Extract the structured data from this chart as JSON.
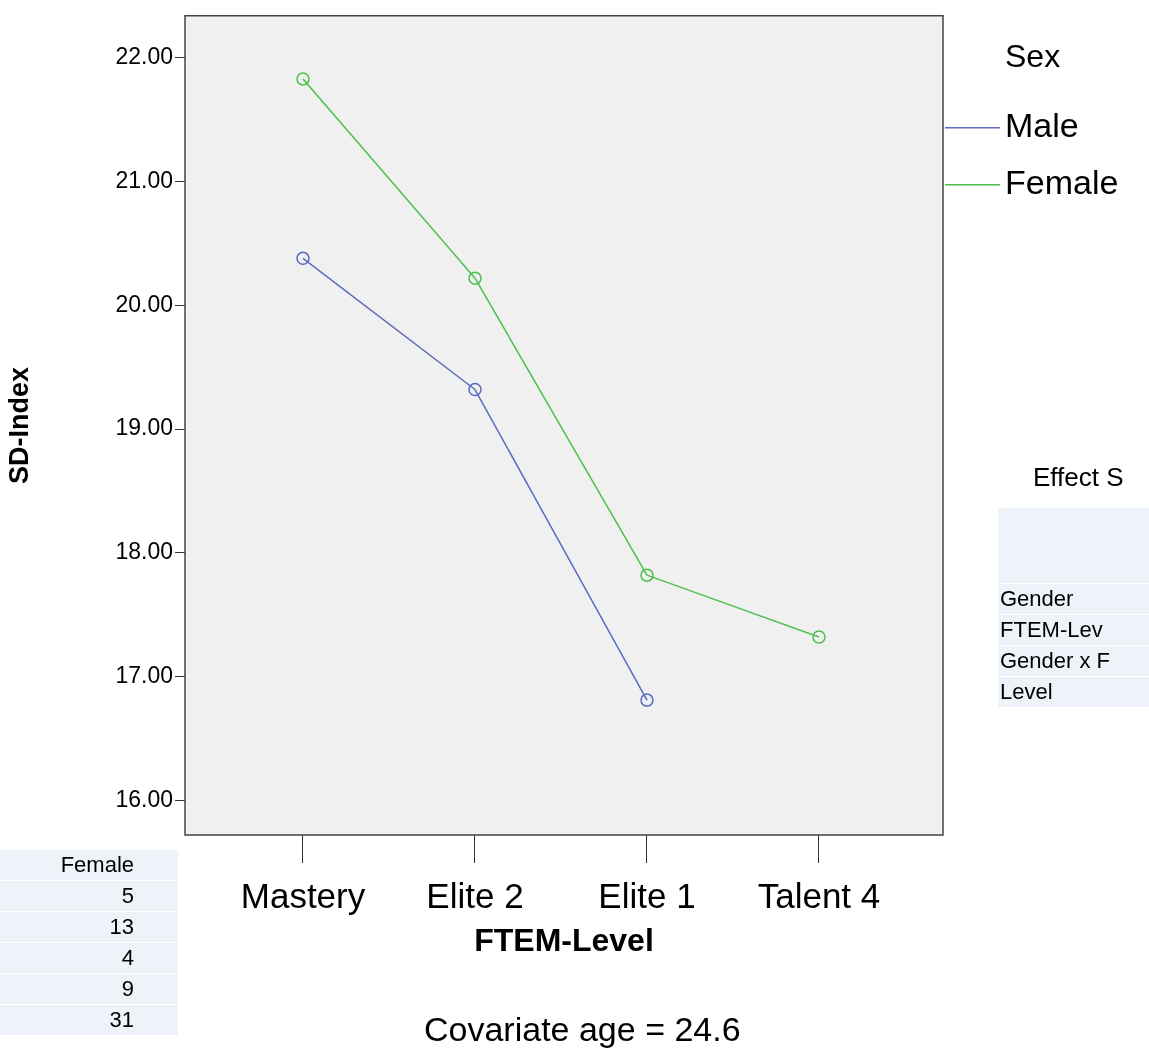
{
  "chart_data": {
    "type": "line",
    "xlabel": "FTEM-Level",
    "ylabel": "SD-Index",
    "legend_title": "Sex",
    "legend": "top right",
    "marker": "circle",
    "grid": false,
    "categories": [
      "Mastery",
      "Elite 2",
      "Elite 1",
      "Talent 4"
    ],
    "ylim": [
      15.72,
      22.34
    ],
    "yticks": [
      {
        "value": 16,
        "label": "16.00"
      },
      {
        "value": 17,
        "label": "17.00"
      },
      {
        "value": 18,
        "label": "18.00"
      },
      {
        "value": 19,
        "label": "19.00"
      },
      {
        "value": 20,
        "label": "20.00"
      },
      {
        "value": 21,
        "label": "21.00"
      },
      {
        "value": 22,
        "label": "22.00"
      }
    ],
    "series": [
      {
        "name": "Male",
        "color": "#5a6bc0",
        "values": [
          20.38,
          19.32,
          16.81,
          null
        ]
      },
      {
        "name": "Female",
        "color": "#4cc04c",
        "values": [
          21.83,
          20.22,
          17.82,
          17.32
        ]
      }
    ],
    "annotations": [
      "Covariate age = 24.6",
      "Female",
      "5",
      "13",
      "4",
      "9",
      "31",
      "Effect S",
      "Gender",
      "FTEM-Lev",
      "Gender x F",
      "Level"
    ]
  }
}
